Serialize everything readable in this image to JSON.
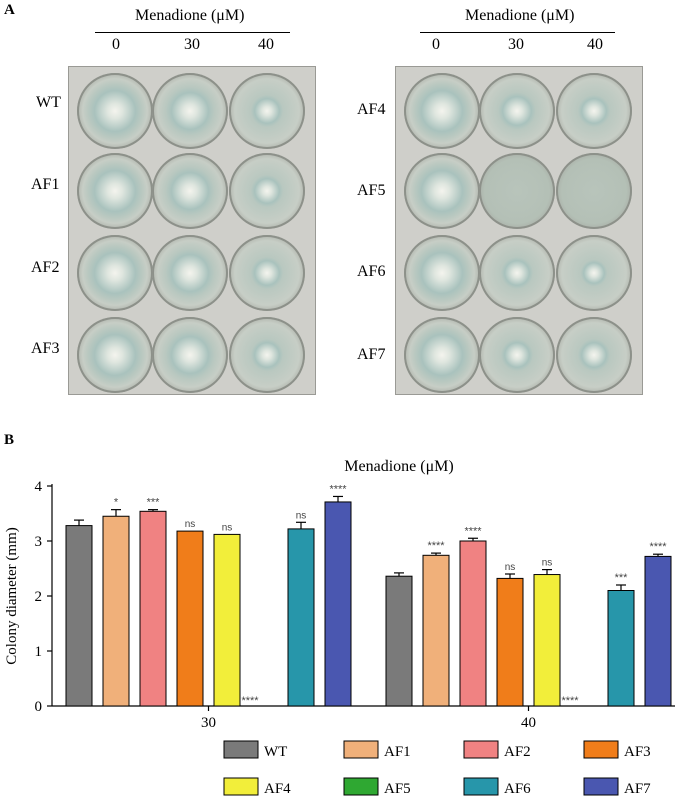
{
  "panelA": {
    "letter": "A",
    "left": {
      "header": "Menadione (μM)",
      "concentrations": [
        "0",
        "30",
        "40"
      ],
      "strains": [
        "WT",
        "AF1",
        "AF2",
        "AF3"
      ]
    },
    "right": {
      "header": "Menadione (μM)",
      "concentrations": [
        "0",
        "30",
        "40"
      ],
      "strains": [
        "AF4",
        "AF5",
        "AF6",
        "AF7"
      ]
    }
  },
  "panelB": {
    "letter": "B"
  },
  "chart_data": {
    "type": "bar",
    "title": "Menadione (μM)",
    "ylabel": "Colony diameter (mm)",
    "xlabel": "",
    "ylim": [
      0,
      4
    ],
    "yticks": [
      "0",
      "1",
      "2",
      "3",
      "4"
    ],
    "categories": [
      "30",
      "40"
    ],
    "series": [
      {
        "name": "WT",
        "color": "#7a7a7a",
        "values": [
          3.28,
          2.36
        ],
        "errors": [
          0.1,
          0.06
        ],
        "sig": [
          "",
          ""
        ]
      },
      {
        "name": "AF1",
        "color": "#f0b07a",
        "values": [
          3.45,
          2.74
        ],
        "errors": [
          0.12,
          0.04
        ],
        "sig": [
          "*",
          "****"
        ]
      },
      {
        "name": "AF2",
        "color": "#f08282",
        "values": [
          3.54,
          3.0
        ],
        "errors": [
          0.03,
          0.05
        ],
        "sig": [
          "***",
          "****"
        ]
      },
      {
        "name": "AF3",
        "color": "#f07d1a",
        "values": [
          3.18,
          2.32
        ],
        "errors": [
          0.0,
          0.08
        ],
        "sig": [
          "ns",
          "ns"
        ]
      },
      {
        "name": "AF4",
        "color": "#f2ee3a",
        "values": [
          3.12,
          2.39
        ],
        "errors": [
          0.0,
          0.09
        ],
        "sig": [
          "ns",
          "ns"
        ]
      },
      {
        "name": "AF5",
        "color": "#2fa832",
        "values": [
          0,
          0
        ],
        "errors": [
          0,
          0
        ],
        "sig": [
          "****",
          "****"
        ]
      },
      {
        "name": "AF6",
        "color": "#2796aa",
        "values": [
          3.22,
          2.1
        ],
        "errors": [
          0.12,
          0.1
        ],
        "sig": [
          "ns",
          "***"
        ]
      },
      {
        "name": "AF7",
        "color": "#4a57b0",
        "values": [
          3.71,
          2.72
        ],
        "errors": [
          0.1,
          0.04
        ],
        "sig": [
          "****",
          "****"
        ]
      }
    ]
  }
}
